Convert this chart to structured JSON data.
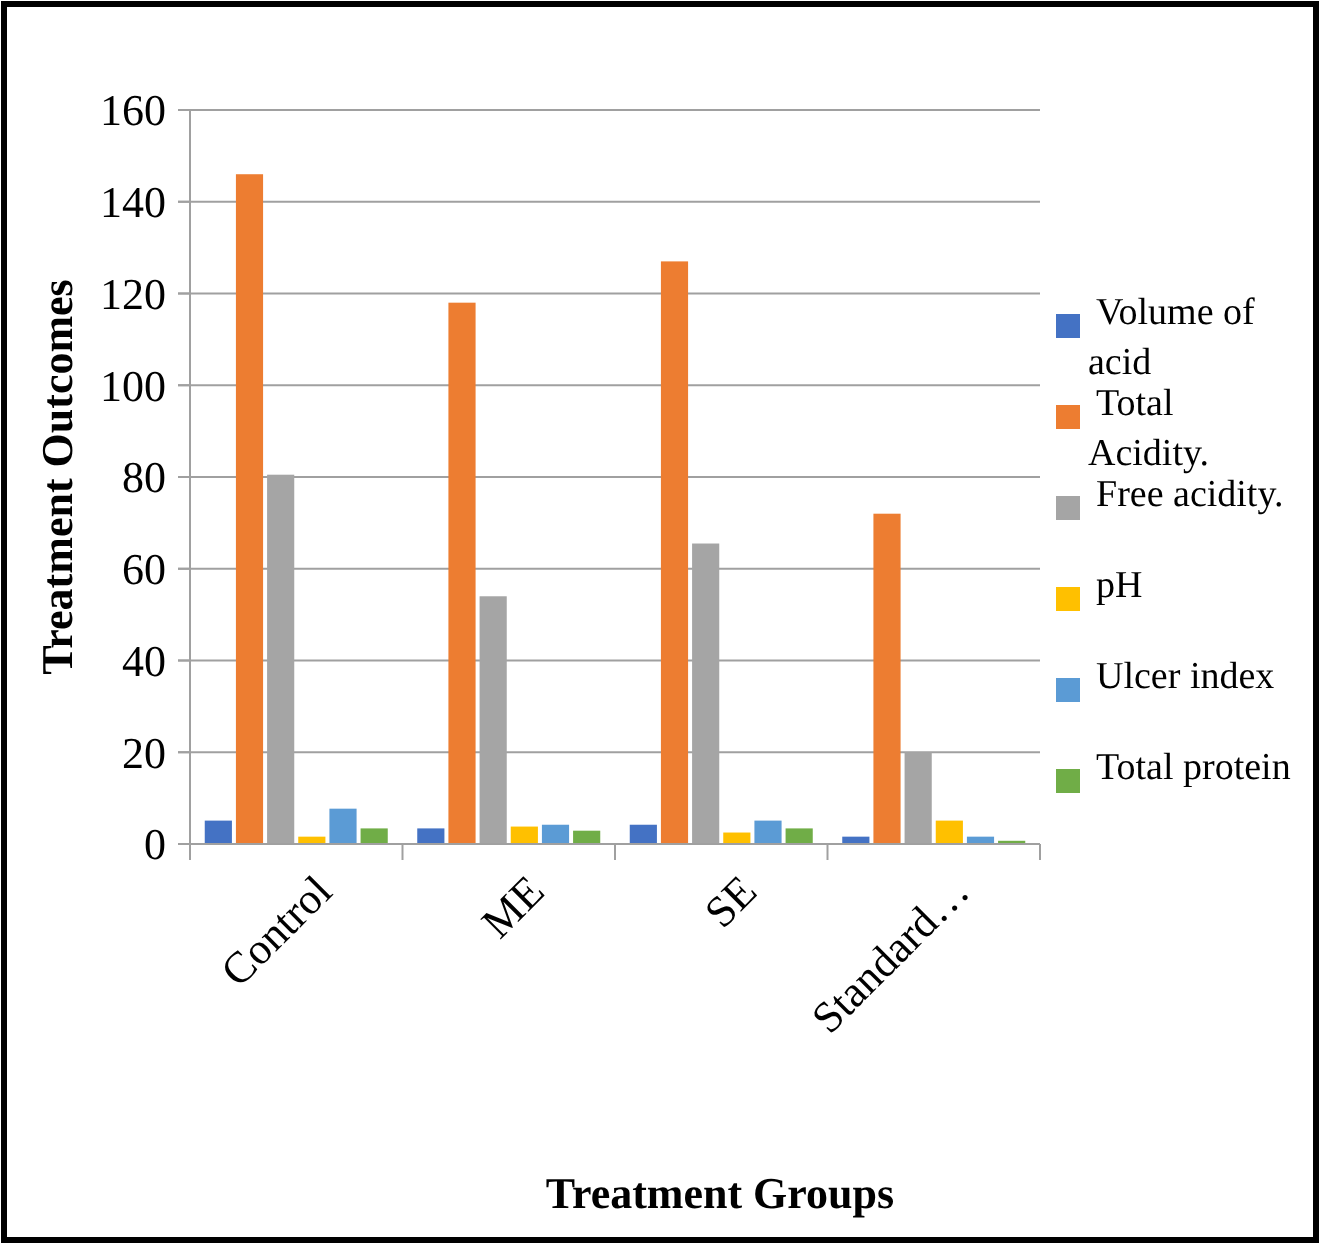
{
  "chart_data": {
    "type": "bar",
    "xlabel": "Treatment Groups",
    "ylabel": "Treatment Outcomes",
    "categories": [
      "Control",
      "ME",
      "SE",
      "Standard…"
    ],
    "series": [
      {
        "name": "Volume of acid",
        "color": "#4472c4",
        "values": [
          5.1,
          3.4,
          4.2,
          1.6
        ]
      },
      {
        "name": "Total Acidity.",
        "color": "#ed7d31",
        "values": [
          146,
          118,
          127,
          72
        ]
      },
      {
        "name": "Free acidity.",
        "color": "#a5a5a5",
        "values": [
          80.5,
          54,
          65.5,
          20
        ]
      },
      {
        "name": "pH",
        "color": "#ffc000",
        "values": [
          1.6,
          3.8,
          2.5,
          5.1
        ]
      },
      {
        "name": "Ulcer index",
        "color": "#5b9bd5",
        "values": [
          7.7,
          4.2,
          5.1,
          1.6
        ]
      },
      {
        "name": "Total protein",
        "color": "#70ad47",
        "values": [
          3.4,
          2.9,
          3.4,
          0.7
        ]
      }
    ],
    "ylim": [
      0,
      160
    ],
    "yticks": [
      0,
      20,
      40,
      60,
      80,
      100,
      120,
      140,
      160
    ],
    "grid": "y",
    "legend": "right"
  }
}
